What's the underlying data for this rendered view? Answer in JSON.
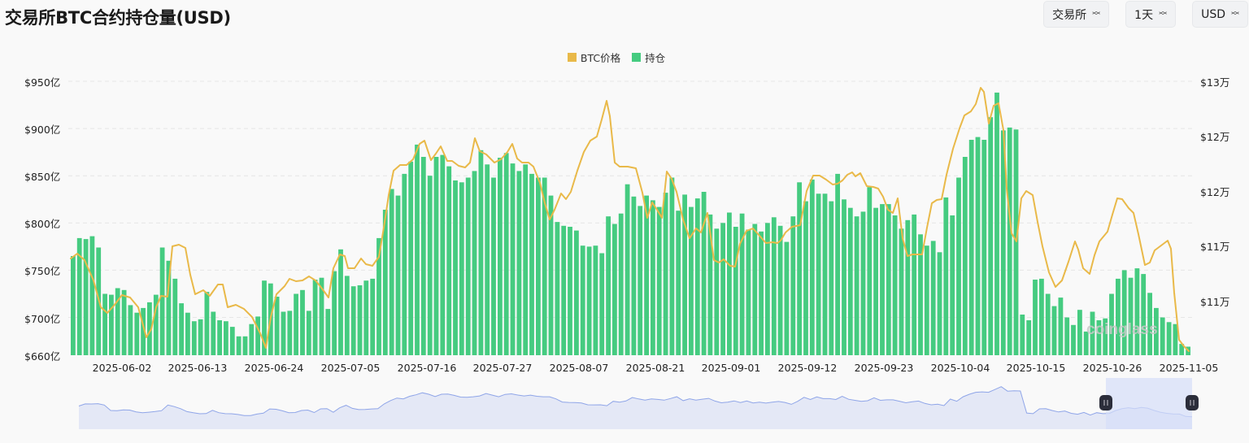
{
  "header": {
    "title": "交易所BTC合约持仓量(USD)",
    "selects": [
      {
        "label": "交易所"
      },
      {
        "label": "1天"
      },
      {
        "label": "USD"
      }
    ]
  },
  "watermark": "coinglass",
  "colors": {
    "price": "#e9b949",
    "oi": "#45cb80",
    "slider_fill": "#e4e8f6",
    "slider_line": "#8fa5e8",
    "slider_sel": "#d6defa",
    "handle": "#2b2d3a"
  },
  "chart_data": {
    "type": "bar",
    "title": "交易所BTC合约持仓量(USD)",
    "legend": [
      "BTC价格",
      "持仓"
    ],
    "legend_position": "top-center",
    "x_tick_labels": [
      "2025-06-02",
      "2025-06-13",
      "2025-06-24",
      "2025-07-05",
      "2025-07-16",
      "2025-07-27",
      "2025-08-07",
      "2025-08-21",
      "2025-09-01",
      "2025-09-12",
      "2025-09-23",
      "2025-10-04",
      "2025-10-15",
      "2025-10-26",
      "2025-11-05"
    ],
    "left_axis": {
      "label": "持仓",
      "ticks": [
        "$660亿",
        "$700亿",
        "$750亿",
        "$800亿",
        "$850亿",
        "$900亿",
        "$950亿"
      ],
      "range": [
        660,
        950
      ],
      "unit": "亿 USD"
    },
    "right_axis": {
      "label": "BTC价格",
      "ticks": [
        "$11万",
        "$11万",
        "$12万",
        "$12万",
        "$13万"
      ],
      "range": [
        105000,
        130000
      ],
      "unit": "USD"
    },
    "grid": true,
    "series": [
      {
        "name": "持仓",
        "type": "bar",
        "unit": "亿USD",
        "values": [
          765,
          784,
          783,
          786,
          774,
          725,
          724,
          731,
          729,
          713,
          705,
          710,
          716,
          724,
          774,
          760,
          741,
          715,
          705,
          696,
          698,
          727,
          706,
          697,
          696,
          690,
          680,
          680,
          693,
          701,
          739,
          736,
          722,
          706,
          707,
          725,
          729,
          707,
          740,
          742,
          709,
          749,
          772,
          744,
          733,
          734,
          739,
          741,
          784,
          814,
          836,
          829,
          852,
          865,
          883,
          870,
          850,
          870,
          872,
          860,
          845,
          843,
          848,
          855,
          877,
          862,
          848,
          869,
          874,
          863,
          855,
          862,
          852,
          848,
          848,
          829,
          801,
          797,
          796,
          792,
          776,
          775,
          776,
          768,
          807,
          799,
          810,
          841,
          828,
          818,
          829,
          824,
          817,
          832,
          848,
          813,
          830,
          817,
          826,
          833,
          809,
          794,
          800,
          811,
          796,
          810,
          793,
          799,
          791,
          800,
          806,
          797,
          780,
          807,
          843,
          823,
          846,
          831,
          831,
          823,
          852,
          825,
          816,
          807,
          812,
          838,
          816,
          820,
          820,
          808,
          794,
          803,
          809,
          788,
          776,
          781,
          769,
          827,
          808,
          848,
          870,
          888,
          891,
          888,
          912,
          938,
          898,
          901,
          899,
          703,
          697,
          740,
          741,
          725,
          712,
          721,
          700,
          692,
          708,
          685,
          706,
          697,
          699,
          725,
          741,
          750,
          742,
          752,
          746,
          726,
          710,
          700,
          695,
          693,
          672,
          669
        ]
      },
      {
        "name": "BTC价格",
        "type": "line",
        "unit": "USD"
      }
    ]
  },
  "slider": {
    "start_pct": 90.5,
    "end_pct": 100
  }
}
